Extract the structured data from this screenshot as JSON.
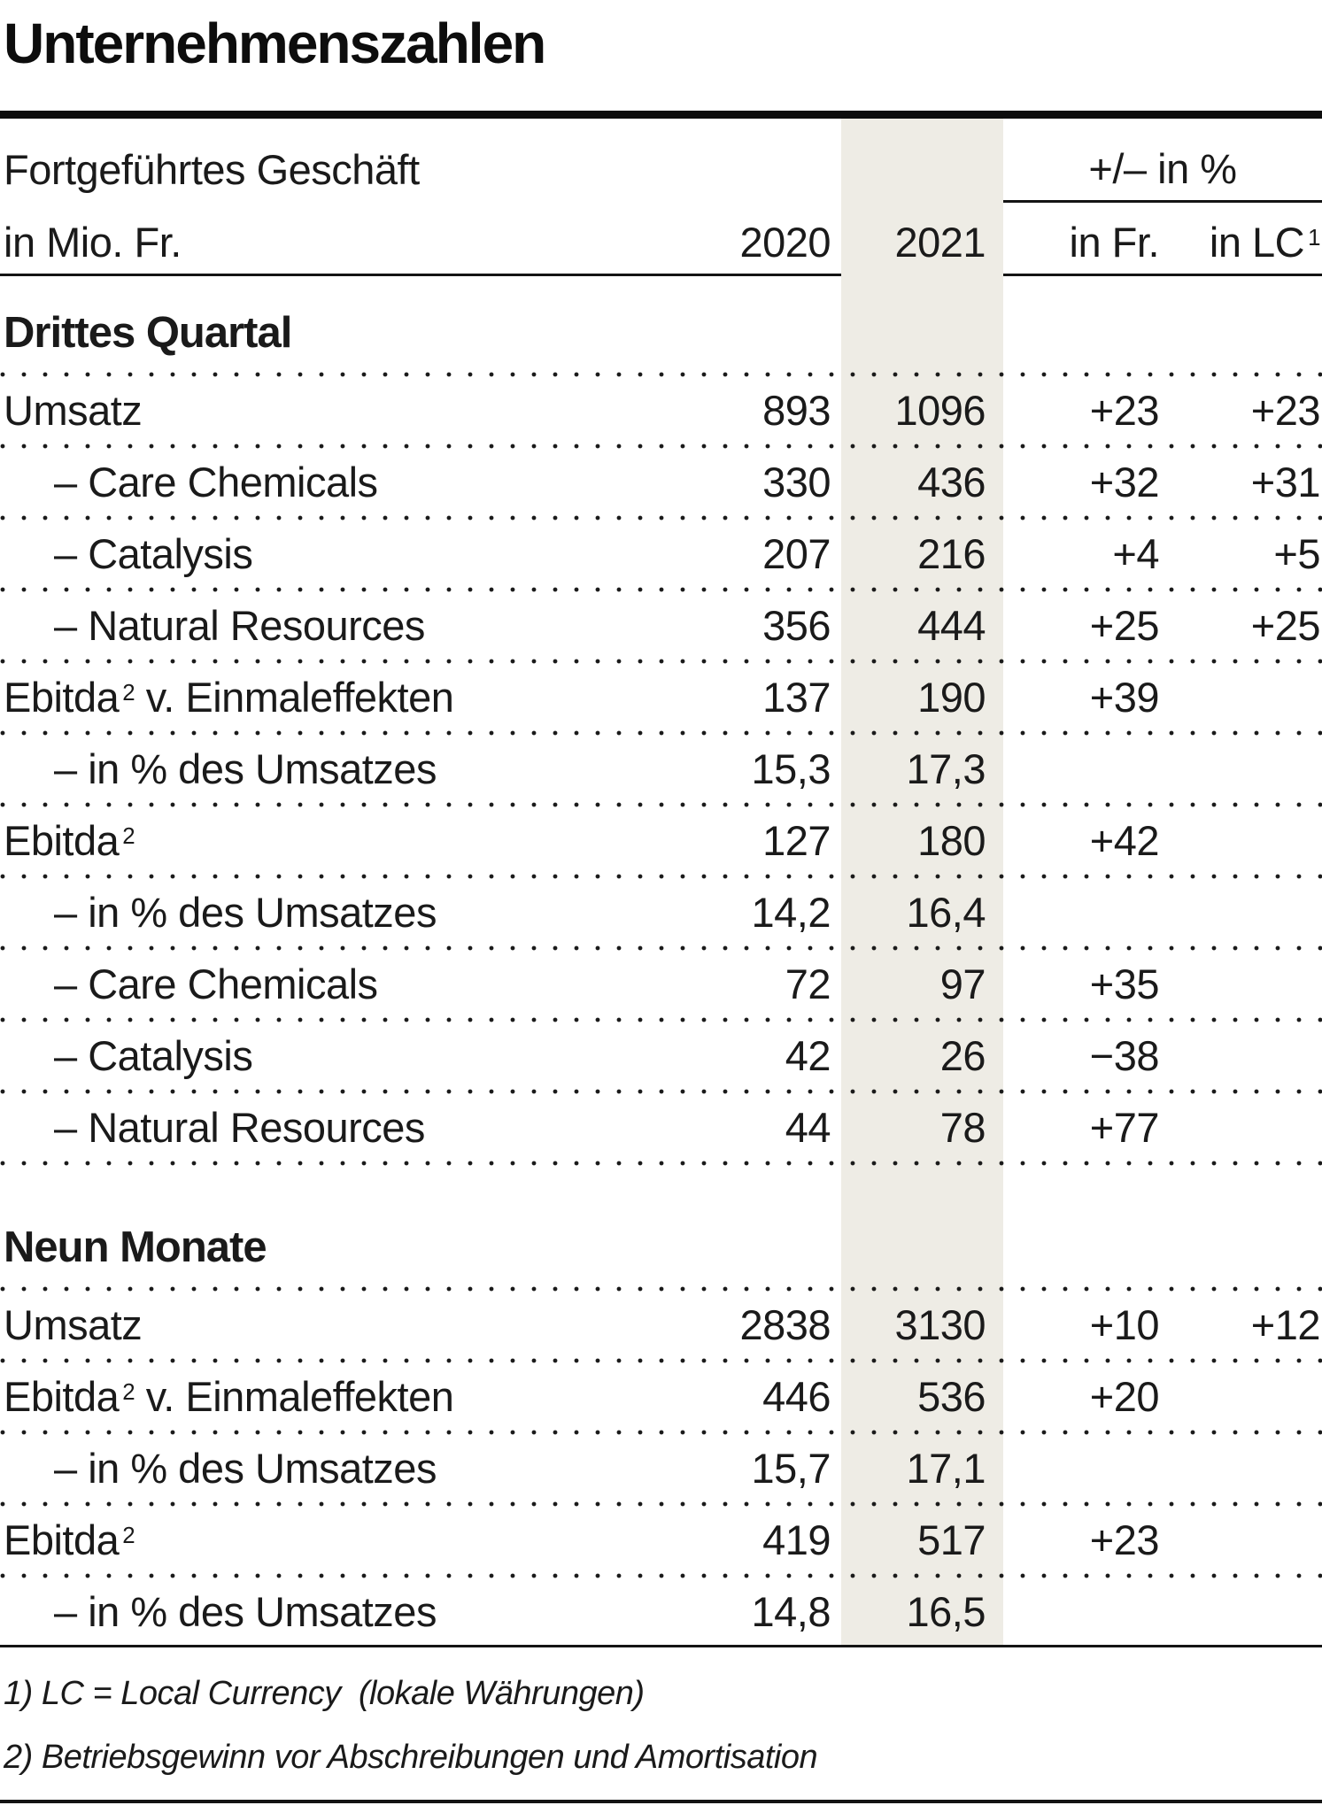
{
  "chart_data": {
    "type": "table",
    "title": "Unternehmenszahlen",
    "header": {
      "line1_left": "Fortgeführtes Geschäft",
      "line2_left": "in Mio. Fr.",
      "col_2020": "2020",
      "col_2021": "2021",
      "pct_group": "+/– in %",
      "col_fr": "in Fr.",
      "col_lc": "in LC",
      "col_lc_sup": "1"
    },
    "sections": [
      {
        "heading": "Drittes Quartal",
        "rows": [
          {
            "label": "Umsatz",
            "sup": "",
            "post": "",
            "v2020": "893",
            "v2021": "1096",
            "fr": "+23",
            "lc": "+23"
          },
          {
            "label": "– Care Chemicals",
            "sup": "",
            "post": "",
            "v2020": "330",
            "v2021": "436",
            "fr": "+32",
            "lc": "+31"
          },
          {
            "label": "– Catalysis",
            "sup": "",
            "post": "",
            "v2020": "207",
            "v2021": "216",
            "fr": "+4",
            "lc": "+5"
          },
          {
            "label": "– Natural Resources",
            "sup": "",
            "post": "",
            "v2020": "356",
            "v2021": "444",
            "fr": "+25",
            "lc": "+25"
          },
          {
            "label": "Ebitda",
            "sup": "2",
            "post": " v. Einmaleffekten",
            "v2020": "137",
            "v2021": "190",
            "fr": "+39",
            "lc": ""
          },
          {
            "label": "– in % des Umsatzes",
            "sup": "",
            "post": "",
            "v2020": "15,3",
            "v2021": "17,3",
            "fr": "",
            "lc": ""
          },
          {
            "label": "Ebitda",
            "sup": "2",
            "post": "",
            "v2020": "127",
            "v2021": "180",
            "fr": "+42",
            "lc": ""
          },
          {
            "label": "– in % des Umsatzes",
            "sup": "",
            "post": "",
            "v2020": "14,2",
            "v2021": "16,4",
            "fr": "",
            "lc": ""
          },
          {
            "label": "– Care Chemicals",
            "sup": "",
            "post": "",
            "v2020": "72",
            "v2021": "97",
            "fr": "+35",
            "lc": ""
          },
          {
            "label": "– Catalysis",
            "sup": "",
            "post": "",
            "v2020": "42",
            "v2021": "26",
            "fr": "−38",
            "lc": ""
          },
          {
            "label": "– Natural Resources",
            "sup": "",
            "post": "",
            "v2020": "44",
            "v2021": "78",
            "fr": "+77",
            "lc": ""
          }
        ]
      },
      {
        "heading": "Neun Monate",
        "rows": [
          {
            "label": "Umsatz",
            "sup": "",
            "post": "",
            "v2020": "2838",
            "v2021": "3130",
            "fr": "+10",
            "lc": "+12"
          },
          {
            "label": "Ebitda",
            "sup": "2",
            "post": " v. Einmaleffekten",
            "v2020": "446",
            "v2021": "536",
            "fr": "+20",
            "lc": ""
          },
          {
            "label": "– in % des Umsatzes",
            "sup": "",
            "post": "",
            "v2020": "15,7",
            "v2021": "17,1",
            "fr": "",
            "lc": ""
          },
          {
            "label": "Ebitda",
            "sup": "2",
            "post": "",
            "v2020": "419",
            "v2021": "517",
            "fr": "+23",
            "lc": ""
          },
          {
            "label": "– in % des Umsatzes",
            "sup": "",
            "post": "",
            "v2020": "14,8",
            "v2021": "16,5",
            "fr": "",
            "lc": ""
          }
        ]
      }
    ],
    "footnotes": [
      "1) LC = Local Currency  (lokale Währungen)",
      "2) Betriebsgewinn vor Abschreibungen und Amortisation"
    ],
    "colors": {
      "highlight_column_bg": "#EEECE5",
      "text": "#1A1A1A",
      "rule": "#141414"
    }
  }
}
